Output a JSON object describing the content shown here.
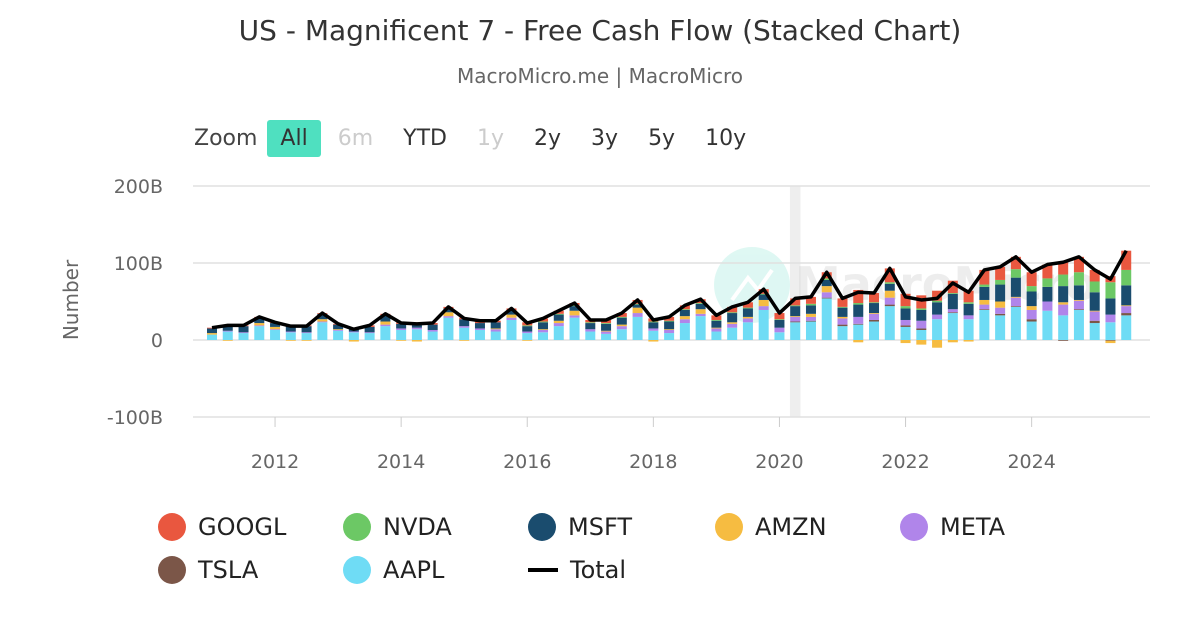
{
  "title": "US - Magnificent 7 - Free Cash Flow (Stacked Chart)",
  "subtitle": "MacroMicro.me | MacroMicro",
  "watermark": "MacroMicro",
  "zoom": {
    "label": "Zoom",
    "buttons": [
      {
        "label": "All",
        "state": "selected"
      },
      {
        "label": "6m",
        "state": "disabled"
      },
      {
        "label": "YTD",
        "state": "normal"
      },
      {
        "label": "1y",
        "state": "disabled"
      },
      {
        "label": "2y",
        "state": "normal"
      },
      {
        "label": "3y",
        "state": "normal"
      },
      {
        "label": "5y",
        "state": "normal"
      },
      {
        "label": "10y",
        "state": "normal"
      }
    ]
  },
  "chart_data": {
    "type": "bar",
    "stacked": true,
    "title": "US - Magnificent 7 - Free Cash Flow (Stacked Chart)",
    "ylabel": "Number",
    "ylim": [
      -100,
      200
    ],
    "yticks": [
      {
        "v": 200,
        "label": "200B"
      },
      {
        "v": 100,
        "label": "100B"
      },
      {
        "v": 0,
        "label": "0"
      },
      {
        "v": -100,
        "label": "-100B"
      }
    ],
    "xticks": [
      "2012",
      "2014",
      "2016",
      "2018",
      "2020",
      "2022",
      "2024"
    ],
    "grid": true,
    "legend_position": "bottom",
    "plot_band": {
      "from": "2020-02",
      "to": "2020-04",
      "color": "#eeeeee"
    },
    "x": [
      "2010-12",
      "2011-03",
      "2011-06",
      "2011-09",
      "2011-12",
      "2012-03",
      "2012-06",
      "2012-09",
      "2012-12",
      "2013-03",
      "2013-06",
      "2013-09",
      "2013-12",
      "2014-03",
      "2014-06",
      "2014-09",
      "2014-12",
      "2015-03",
      "2015-06",
      "2015-09",
      "2015-12",
      "2016-03",
      "2016-06",
      "2016-09",
      "2016-12",
      "2017-03",
      "2017-06",
      "2017-09",
      "2017-12",
      "2018-03",
      "2018-06",
      "2018-09",
      "2018-12",
      "2019-03",
      "2019-06",
      "2019-09",
      "2019-12",
      "2020-03",
      "2020-06",
      "2020-09",
      "2020-12",
      "2021-03",
      "2021-06",
      "2021-09",
      "2021-12",
      "2022-03",
      "2022-06",
      "2022-09",
      "2022-12",
      "2023-03",
      "2023-06",
      "2023-09",
      "2023-12",
      "2024-03",
      "2024-06",
      "2024-09",
      "2024-12",
      "2025-03",
      "2025-06"
    ],
    "series": [
      {
        "name": "GOOGL",
        "color": "#e9573f",
        "values": [
          1,
          1,
          1,
          1,
          1,
          1,
          1,
          1,
          1,
          1,
          2,
          2,
          2,
          2,
          2,
          2,
          2,
          3,
          2,
          3,
          4,
          4,
          4,
          3,
          3,
          4,
          5,
          5,
          4,
          5,
          5,
          5,
          6,
          7,
          7,
          6,
          8,
          9,
          9,
          8,
          11,
          17,
          12,
          18,
          16,
          17,
          13,
          16,
          15,
          19,
          17,
          16,
          18,
          18,
          17,
          20,
          15,
          8,
          25
        ]
      },
      {
        "name": "NVDA",
        "color": "#6cc865",
        "values": [
          0,
          0,
          0,
          0,
          0,
          0,
          0,
          0,
          0,
          0,
          0,
          0,
          0,
          0,
          0,
          0,
          0,
          0,
          0,
          0,
          1,
          1,
          1,
          1,
          1,
          1,
          1,
          1,
          1,
          1,
          1,
          1,
          1,
          1,
          1,
          1,
          1,
          1,
          2,
          2,
          1,
          2,
          1,
          2,
          3,
          2,
          2,
          1,
          2,
          3,
          6,
          11,
          7,
          11,
          15,
          17,
          14,
          21,
          20
        ]
      },
      {
        "name": "MSFT",
        "color": "#1a4c6e",
        "values": [
          6,
          7,
          8,
          7,
          5,
          7,
          8,
          7,
          6,
          4,
          7,
          8,
          6,
          5,
          7,
          5,
          9,
          7,
          8,
          5,
          7,
          9,
          8,
          6,
          8,
          9,
          9,
          4,
          8,
          10,
          8,
          7,
          9,
          12,
          11,
          7,
          10,
          13,
          11,
          8,
          12,
          16,
          13,
          9,
          15,
          14,
          16,
          20,
          15,
          17,
          22,
          25,
          19,
          19,
          21,
          19,
          24,
          21,
          26
        ]
      },
      {
        "name": "AMZN",
        "color": "#f6bc41",
        "values": [
          2,
          -1,
          0,
          3,
          3,
          -1,
          -1,
          3,
          1,
          -2,
          0,
          4,
          -1,
          -2,
          0,
          5,
          -1,
          0,
          1,
          4,
          -1,
          1,
          3,
          6,
          0,
          1,
          2,
          7,
          -2,
          1,
          4,
          6,
          1,
          2,
          2,
          8,
          0,
          1,
          4,
          8,
          2,
          -3,
          1,
          9,
          -4,
          -6,
          -10,
          -3,
          -2,
          6,
          8,
          1,
          5,
          0,
          3,
          1,
          1,
          -3,
          1
        ]
      },
      {
        "name": "META",
        "color": "#b085ea",
        "values": [
          0,
          1,
          1,
          1,
          1,
          1,
          1,
          1,
          1,
          1,
          1,
          2,
          2,
          2,
          2,
          2,
          2,
          2,
          3,
          3,
          2,
          3,
          4,
          3,
          3,
          3,
          4,
          5,
          3,
          4,
          5,
          3,
          4,
          5,
          5,
          5,
          6,
          6,
          5,
          7,
          8,
          9,
          8,
          9,
          7,
          10,
          6,
          4,
          5,
          6,
          8,
          11,
          12,
          12,
          14,
          11,
          12,
          10,
          9
        ]
      },
      {
        "name": "TSLA",
        "color": "#7b5648",
        "values": [
          0,
          0,
          0,
          0,
          0,
          0,
          0,
          0,
          0,
          0,
          0,
          0,
          0,
          0,
          0,
          0,
          0,
          0,
          0,
          0,
          0,
          0,
          0,
          0,
          0,
          0,
          0,
          0,
          0,
          0,
          0,
          0,
          0,
          0,
          0,
          0,
          0,
          1,
          1,
          1,
          2,
          1,
          2,
          2,
          2,
          2,
          0,
          1,
          0,
          1,
          2,
          1,
          3,
          0,
          -1,
          1,
          3,
          -1,
          3
        ]
      },
      {
        "name": "AAPL",
        "color": "#6fdcf5",
        "values": [
          7,
          11,
          9,
          18,
          13,
          10,
          9,
          23,
          12,
          10,
          9,
          18,
          13,
          14,
          11,
          29,
          16,
          13,
          11,
          26,
          9,
          10,
          18,
          29,
          11,
          8,
          14,
          30,
          12,
          9,
          22,
          31,
          11,
          16,
          23,
          39,
          10,
          23,
          24,
          54,
          18,
          20,
          24,
          44,
          17,
          13,
          27,
          35,
          27,
          39,
          32,
          43,
          24,
          38,
          32,
          39,
          22,
          23,
          32
        ]
      },
      {
        "name": "Total",
        "color": "#000000",
        "type": "line",
        "values": [
          16,
          19,
          19,
          30,
          23,
          18,
          18,
          35,
          21,
          14,
          19,
          34,
          22,
          21,
          22,
          43,
          28,
          25,
          25,
          41,
          22,
          28,
          38,
          48,
          26,
          26,
          35,
          52,
          26,
          30,
          45,
          53,
          32,
          43,
          49,
          66,
          35,
          54,
          56,
          88,
          54,
          62,
          61,
          93,
          56,
          52,
          54,
          74,
          62,
          91,
          95,
          108,
          88,
          98,
          101,
          108,
          91,
          79,
          116
        ]
      }
    ]
  }
}
